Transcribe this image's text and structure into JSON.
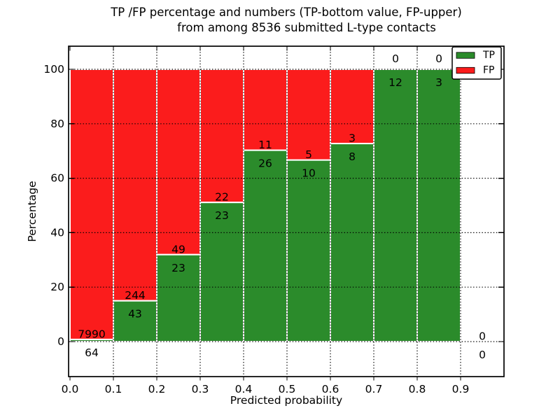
{
  "chart_data": {
    "type": "bar",
    "stacked": true,
    "title_line1": "TP /FP percentage and numbers (TP-bottom value, FP-upper)",
    "title_line2": "from among 8536 submitted L-type contacts",
    "xlabel": "Predicted probability",
    "ylabel": "Percentage",
    "total_submitted": 8536,
    "xlim": [
      0.0,
      1.0
    ],
    "ylim": [
      0,
      100
    ],
    "grid_style": "dotted",
    "legend_position": "upper right",
    "x_ticks": [
      0.0,
      0.1,
      0.2,
      0.3,
      0.4,
      0.5,
      0.6,
      0.7,
      0.8,
      0.9
    ],
    "x_tick_labels": [
      "0.0",
      "0.1",
      "0.2",
      "0.3",
      "0.4",
      "0.5",
      "0.6",
      "0.7",
      "0.8",
      "0.9"
    ],
    "y_ticks": [
      0,
      20,
      40,
      60,
      80,
      100
    ],
    "y_tick_labels": [
      "0",
      "20",
      "40",
      "60",
      "80",
      "100"
    ],
    "colors": {
      "tp": "#2b8b2b",
      "fp": "#fb1c1c",
      "bar_edge": "#ffffff",
      "grid": "#000000"
    },
    "legend": [
      {
        "label": "TP",
        "color": "#2b8b2b"
      },
      {
        "label": "FP",
        "color": "#fb1c1c"
      }
    ],
    "bins": [
      {
        "range": [
          0.0,
          0.1
        ],
        "tp": 64,
        "fp": 7990,
        "tp_pct": 0.79
      },
      {
        "range": [
          0.1,
          0.2
        ],
        "tp": 43,
        "fp": 244,
        "tp_pct": 14.98
      },
      {
        "range": [
          0.2,
          0.3
        ],
        "tp": 23,
        "fp": 49,
        "tp_pct": 31.94
      },
      {
        "range": [
          0.3,
          0.4
        ],
        "tp": 23,
        "fp": 22,
        "tp_pct": 51.11
      },
      {
        "range": [
          0.4,
          0.5
        ],
        "tp": 26,
        "fp": 11,
        "tp_pct": 70.27
      },
      {
        "range": [
          0.5,
          0.6
        ],
        "tp": 10,
        "fp": 5,
        "tp_pct": 66.67
      },
      {
        "range": [
          0.6,
          0.7
        ],
        "tp": 8,
        "fp": 3,
        "tp_pct": 72.73
      },
      {
        "range": [
          0.7,
          0.8
        ],
        "tp": 12,
        "fp": 0,
        "tp_pct": 100.0
      },
      {
        "range": [
          0.8,
          0.9
        ],
        "tp": 3,
        "fp": 0,
        "tp_pct": 100.0
      },
      {
        "range": [
          0.9,
          1.0
        ],
        "tp": 0,
        "fp": 0,
        "tp_pct": null
      }
    ]
  }
}
